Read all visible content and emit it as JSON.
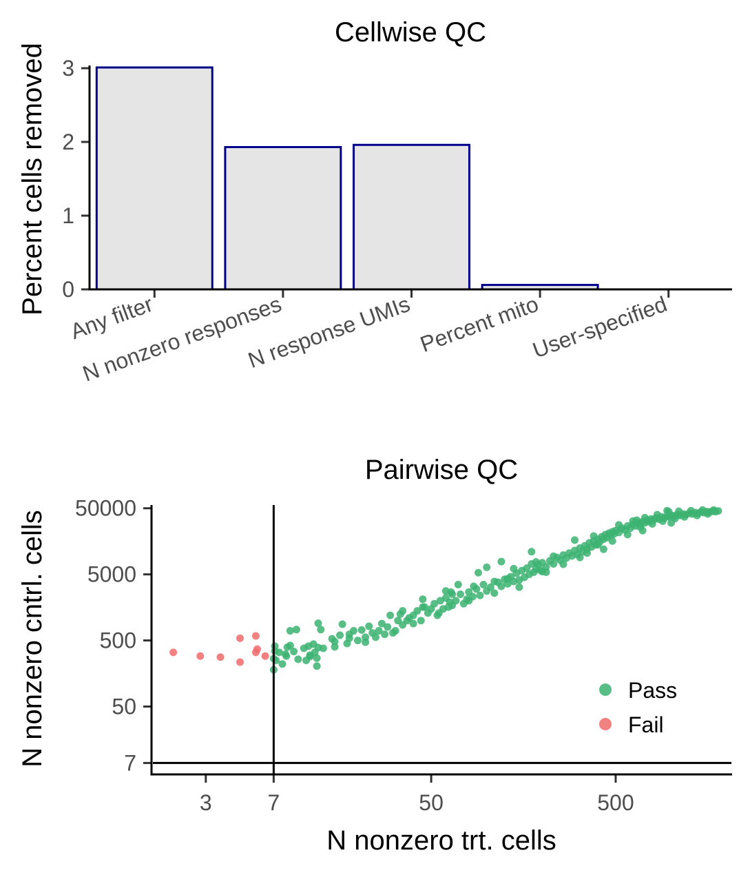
{
  "chart_data": [
    {
      "type": "bar",
      "title": "Cellwise QC",
      "xlabel": "",
      "ylabel": "Percent cells removed",
      "categories": [
        "Any filter",
        "N nonzero responses",
        "N response UMIs",
        "Percent mito",
        "User-specified"
      ],
      "values": [
        3.01,
        1.93,
        1.96,
        0.06,
        0
      ],
      "ylim": [
        0,
        3.1
      ],
      "yticks": [
        "0",
        "1",
        "2",
        "3"
      ],
      "ytick_values": [
        0,
        1,
        2,
        3
      ],
      "bar_fill": "#e5e5e5",
      "bar_outline": "#00008b",
      "grid": false
    },
    {
      "type": "scatter",
      "title": "Pairwise QC",
      "xlabel": "N nonzero trt. cells",
      "ylabel": "N nonzero cntrl. cells",
      "x_scale": "log",
      "y_scale": "log",
      "xlim": [
        1.55,
        2120
      ],
      "ylim": [
        4.7,
        56000
      ],
      "xticks": [
        "3",
        "7",
        "50",
        "500"
      ],
      "xtick_values": [
        3,
        7,
        50,
        500
      ],
      "yticks": [
        "7",
        "50",
        "500",
        "5000",
        "50000"
      ],
      "ytick_values": [
        7,
        50,
        500,
        5000,
        50000
      ],
      "reference_lines": {
        "x": 7,
        "y": 7
      },
      "legend": {
        "position": "right",
        "entries": [
          {
            "name": "Pass",
            "color": "#3cb371"
          },
          {
            "name": "Fail",
            "color": "#f06b6b"
          }
        ]
      },
      "grid": false,
      "series": [
        {
          "name": "Fail",
          "color": "#f06b6b",
          "points": [
            [
              2.0,
              330
            ],
            [
              2.8,
              290
            ],
            [
              3.6,
              280
            ],
            [
              4.6,
              235
            ],
            [
              4.6,
              540
            ],
            [
              5.6,
              585
            ],
            [
              5.6,
              330
            ],
            [
              5.7,
              370
            ],
            [
              6.3,
              290
            ]
          ]
        },
        {
          "name": "Pass",
          "color": "#3cb371",
          "points": [
            [
              7.0,
              180
            ],
            [
              7.0,
              265
            ],
            [
              7.1,
              345
            ],
            [
              7.1,
              410
            ],
            [
              7.8,
              220
            ],
            [
              8.1,
              310
            ],
            [
              8.3,
              395
            ],
            [
              8.6,
              420
            ],
            [
              8.6,
              700
            ],
            [
              9.0,
              340
            ],
            [
              9.3,
              730
            ],
            [
              10.2,
              380
            ],
            [
              10.5,
              250
            ],
            [
              10.8,
              410
            ],
            [
              11.0,
              285
            ],
            [
              11.5,
              440
            ],
            [
              11.7,
              330
            ],
            [
              12.0,
              205
            ],
            [
              12.2,
              390
            ],
            [
              12.6,
              730
            ],
            [
              12.2,
              910
            ],
            [
              14.5,
              530
            ],
            [
              15.0,
              400
            ],
            [
              16.0,
              600
            ],
            [
              16.5,
              880
            ],
            [
              17.5,
              450
            ],
            [
              18.0,
              620
            ],
            [
              19.0,
              700
            ],
            [
              20.0,
              500
            ],
            [
              21.0,
              720
            ],
            [
              22.0,
              560
            ],
            [
              23.0,
              820
            ],
            [
              24.0,
              650
            ],
            [
              25.0,
              560
            ],
            [
              26.0,
              700
            ],
            [
              27.0,
              900
            ],
            [
              29.0,
              800
            ],
            [
              30.0,
              1200
            ],
            [
              31.0,
              650
            ],
            [
              32.0,
              700
            ],
            [
              33.0,
              1000
            ],
            [
              34.0,
              1250
            ],
            [
              35.0,
              860
            ],
            [
              37.0,
              1000
            ],
            [
              38.0,
              1100
            ],
            [
              40.0,
              1200
            ],
            [
              42.0,
              1400
            ],
            [
              44.0,
              1000
            ],
            [
              46.0,
              1600
            ],
            [
              48.0,
              1300
            ],
            [
              50.0,
              1500
            ],
            [
              52.0,
              1800
            ],
            [
              54.0,
              1200
            ],
            [
              56.0,
              2000
            ],
            [
              58.0,
              1500
            ],
            [
              60.0,
              2200
            ],
            [
              62.0,
              1600
            ],
            [
              63.0,
              1900
            ],
            [
              64.0,
              2700
            ],
            [
              65.0,
              1700
            ],
            [
              68.0,
              2000
            ],
            [
              72.0,
              2500
            ],
            [
              75.0,
              1800
            ],
            [
              78.0,
              2100
            ],
            [
              80.0,
              2700
            ],
            [
              84.0,
              2300
            ],
            [
              88.0,
              3000
            ],
            [
              92.0,
              2400
            ],
            [
              96.0,
              3500
            ],
            [
              100.0,
              2800
            ],
            [
              105.0,
              3200
            ],
            [
              110.0,
              2600
            ],
            [
              115.0,
              3800
            ],
            [
              120.0,
              3300
            ],
            [
              125.0,
              4200
            ],
            [
              130.0,
              3600
            ],
            [
              135.0,
              4600
            ],
            [
              140.0,
              3900
            ],
            [
              145.0,
              5200
            ],
            [
              150.0,
              4100
            ],
            [
              155.0,
              5700
            ],
            [
              160.0,
              4500
            ],
            [
              165.0,
              6200
            ],
            [
              170.0,
              5000
            ],
            [
              175.0,
              7200
            ],
            [
              180.0,
              5400
            ],
            [
              185.0,
              6000
            ],
            [
              190.0,
              7000
            ],
            [
              195.0,
              5800
            ],
            [
              200.0,
              7500
            ],
            [
              210.0,
              6500
            ],
            [
              220.0,
              8000
            ],
            [
              230.0,
              7200
            ],
            [
              240.0,
              9000
            ],
            [
              250.0,
              8200
            ],
            [
              260.0,
              9800
            ],
            [
              270.0,
              8800
            ],
            [
              280.0,
              10500
            ],
            [
              290.0,
              9500
            ],
            [
              300.0,
              11500
            ],
            [
              310.0,
              10000
            ],
            [
              320.0,
              12500
            ],
            [
              330.0,
              11000
            ],
            [
              340.0,
              13500
            ],
            [
              350.0,
              12000
            ],
            [
              360.0,
              15000
            ],
            [
              370.0,
              13000
            ],
            [
              380.0,
              16000
            ],
            [
              390.0,
              14000
            ],
            [
              400.0,
              17000
            ],
            [
              410.0,
              15500
            ],
            [
              420.0,
              18500
            ],
            [
              430.0,
              17000
            ],
            [
              440.0,
              20000
            ],
            [
              450.0,
              18000
            ],
            [
              460.0,
              21000
            ],
            [
              470.0,
              19500
            ],
            [
              480.0,
              22000
            ],
            [
              490.0,
              20500
            ],
            [
              500.0,
              23000
            ],
            [
              520.0,
              21500
            ],
            [
              540.0,
              25000
            ],
            [
              560.0,
              23500
            ],
            [
              580.0,
              27000
            ],
            [
              600.0,
              25000
            ],
            [
              620.0,
              28500
            ],
            [
              640.0,
              27000
            ],
            [
              660.0,
              30000
            ],
            [
              680.0,
              29000
            ],
            [
              700.0,
              31500
            ],
            [
              720.0,
              30000
            ],
            [
              740.0,
              33000
            ],
            [
              760.0,
              31500
            ],
            [
              780.0,
              34500
            ],
            [
              800.0,
              33000
            ],
            [
              830.0,
              35500
            ],
            [
              860.0,
              34000
            ],
            [
              890.0,
              37000
            ],
            [
              920.0,
              35500
            ],
            [
              950.0,
              38000
            ],
            [
              980.0,
              37000
            ],
            [
              1010.0,
              39000
            ],
            [
              1040.0,
              38000
            ],
            [
              1080.0,
              40000
            ],
            [
              1120.0,
              39000
            ],
            [
              1160.0,
              41000
            ],
            [
              1200.0,
              40000
            ],
            [
              1250.0,
              42000
            ],
            [
              1300.0,
              41000
            ],
            [
              1350.0,
              43000
            ],
            [
              1400.0,
              42000
            ],
            [
              1450.0,
              44000
            ],
            [
              1500.0,
              43000
            ],
            [
              1560.0,
              44500
            ],
            [
              1620.0,
              44000
            ],
            [
              1680.0,
              45000
            ],
            [
              1740.0,
              44500
            ],
            [
              1800.0,
              45500
            ],
            [
              120.0,
              7800
            ],
            [
              300.0,
              16500
            ],
            [
              60.0,
              2800
            ],
            [
              150.0,
              3200
            ],
            [
              80.0,
              2000
            ],
            [
              45.0,
              1600
            ],
            [
              200.0,
              5500
            ],
            [
              400.0,
              14000
            ],
            [
              700.0,
              23000
            ],
            [
              1000.0,
              30000
            ],
            [
              650.0,
              33000
            ],
            [
              950.0,
              46000
            ],
            [
              175.0,
              11000
            ],
            [
              210.0,
              5400
            ],
            [
              130.0,
              4300
            ],
            [
              90.0,
              5300
            ],
            [
              100.0,
              6400
            ],
            [
              70.0,
              3500
            ],
            [
              55.0,
              1300
            ],
            [
              40.0,
              900
            ],
            [
              28.0,
              620
            ],
            [
              22.0,
              470
            ],
            [
              18.0,
              540
            ],
            [
              15.0,
              480
            ],
            [
              13.0,
              380
            ],
            [
              12.0,
              270
            ],
            [
              11.0,
              300
            ],
            [
              9.5,
              260
            ],
            [
              8.2,
              290
            ],
            [
              7.5,
              330
            ],
            [
              7.2,
              250
            ],
            [
              35.0,
              1400
            ],
            [
              45.0,
              2100
            ],
            [
              65.0,
              2500
            ],
            [
              85.0,
              3300
            ],
            [
              110.0,
              3900
            ],
            [
              140.0,
              6100
            ],
            [
              185.0,
              7700
            ],
            [
              230.0,
              9400
            ],
            [
              260.0,
              7100
            ],
            [
              320.0,
              9000
            ],
            [
              350.0,
              10500
            ],
            [
              380.0,
              19000
            ],
            [
              430.0,
              12000
            ],
            [
              480.0,
              16000
            ],
            [
              520.0,
              28000
            ],
            [
              580.0,
              20000
            ],
            [
              620.0,
              32000
            ],
            [
              680.0,
              26000
            ],
            [
              720.0,
              36000
            ],
            [
              790.0,
              29000
            ],
            [
              840.0,
              40000
            ],
            [
              900.0,
              32000
            ],
            [
              970.0,
              44000
            ],
            [
              1050.0,
              35000
            ],
            [
              1100.0,
              45000
            ],
            [
              1180.0,
              37000
            ],
            [
              1280.0,
              46000
            ],
            [
              1380.0,
              39000
            ],
            [
              1480.0,
              47000
            ],
            [
              1580.0,
              41000
            ],
            [
              1700.0,
              47000
            ]
          ]
        }
      ]
    }
  ]
}
